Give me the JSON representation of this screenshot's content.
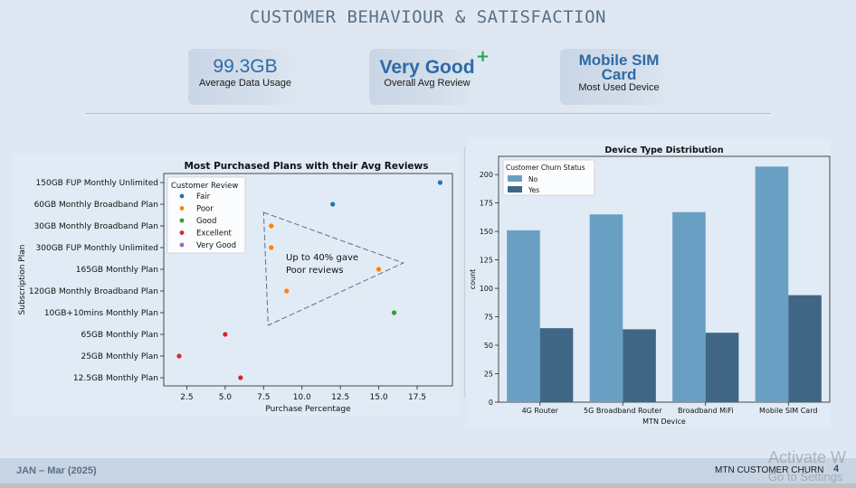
{
  "title": "CUSTOMER BEHAVIOUR & SATISFACTION",
  "kpis": [
    {
      "value": "99.3GB",
      "label": "Average Data Usage"
    },
    {
      "value": "Very Good",
      "label": "Overall Avg Review",
      "badge": "+"
    },
    {
      "value_line1": "Mobile SIM",
      "value_line2": "Card",
      "label": "Most Used Device"
    }
  ],
  "chart_data": [
    {
      "type": "scatter",
      "title": "Most Purchased Plans with their Avg Reviews",
      "xlabel": "Purchase Percentage",
      "ylabel": "Subscription Plan",
      "xlim": [
        1.0,
        19.8
      ],
      "xticks": [
        2.5,
        5.0,
        7.5,
        10.0,
        12.5,
        15.0,
        17.5
      ],
      "xtick_labels": [
        "2.5",
        "5.0",
        "7.5",
        "10.0",
        "12.5",
        "15.0",
        "17.5"
      ],
      "categories": [
        "150GB FUP Monthly Unlimited",
        "60GB Monthly Broadband Plan",
        "30GB Monthly Broadband Plan",
        "300GB FUP Monthly Unlimited",
        "165GB Monthly Plan",
        "120GB Monthly Broadband Plan",
        "10GB+10mins Monthly Plan",
        "65GB Monthly Plan",
        "25GB Monthly Plan",
        "12.5GB Monthly Plan"
      ],
      "legend_title": "Customer Review",
      "legend_position": "upper-left",
      "series": [
        {
          "name": "Fair",
          "color": "#1f77b4"
        },
        {
          "name": "Poor",
          "color": "#ff7f0e"
        },
        {
          "name": "Good",
          "color": "#2ca02c"
        },
        {
          "name": "Excellent",
          "color": "#d62728"
        },
        {
          "name": "Very Good",
          "color": "#9467bd"
        }
      ],
      "points": [
        {
          "y": "150GB FUP Monthly Unlimited",
          "x": 19.0,
          "review": "Fair"
        },
        {
          "y": "60GB Monthly Broadband Plan",
          "x": 12.0,
          "review": "Fair"
        },
        {
          "y": "30GB Monthly Broadband Plan",
          "x": 8.0,
          "review": "Poor"
        },
        {
          "y": "300GB FUP Monthly Unlimited",
          "x": 8.0,
          "review": "Poor"
        },
        {
          "y": "165GB Monthly Plan",
          "x": 15.0,
          "review": "Poor"
        },
        {
          "y": "120GB Monthly Broadband Plan",
          "x": 9.0,
          "review": "Poor"
        },
        {
          "y": "10GB+10mins Monthly Plan",
          "x": 16.0,
          "review": "Good"
        },
        {
          "y": "65GB Monthly Plan",
          "x": 5.0,
          "review": "Excellent"
        },
        {
          "y": "25GB Monthly Plan",
          "x": 2.0,
          "review": "Excellent"
        },
        {
          "y": "12.5GB Monthly Plan",
          "x": 6.0,
          "review": "Excellent"
        }
      ],
      "annotation": {
        "line1": "Up to 40% gave",
        "line2": "Poor reviews"
      },
      "grid": false
    },
    {
      "type": "bar",
      "title": "Device Type Distribution",
      "xlabel": "MTN Device",
      "ylabel": "count",
      "ylim": [
        0,
        216
      ],
      "yticks": [
        0,
        25,
        50,
        75,
        100,
        125,
        150,
        175,
        200
      ],
      "categories": [
        "4G Router",
        "5G Broadband Router",
        "Broadband MiFi",
        "Mobile SIM Card"
      ],
      "legend_title": "Customer Churn Status",
      "legend_position": "upper-left",
      "series": [
        {
          "name": "No",
          "color": "#6a9fc4",
          "values": [
            151,
            165,
            167,
            207
          ]
        },
        {
          "name": "Yes",
          "color": "#3f6785",
          "values": [
            65,
            64,
            61,
            94
          ]
        }
      ],
      "grid": false
    }
  ],
  "footer": {
    "left": "JAN – Mar (2025)",
    "right": "MTN CUSTOMER CHURN",
    "page": "4"
  },
  "watermark": {
    "line1": "Activate W",
    "line2": "Go to Settings"
  }
}
